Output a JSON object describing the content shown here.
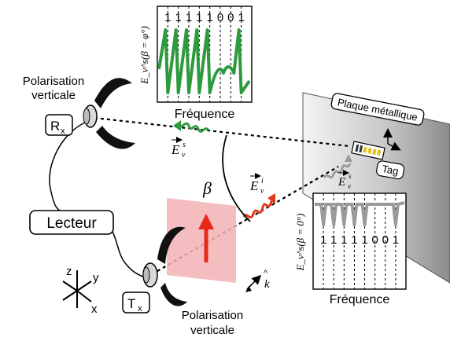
{
  "rx_polarisation": [
    "Polarisation",
    "verticale"
  ],
  "tx_polarisation": [
    "Polarisation",
    "verticale"
  ],
  "rx_box": {
    "main": "R",
    "sub": "x"
  },
  "tx_box": {
    "main": "T",
    "sub": "x"
  },
  "reader_label": "Lecteur",
  "plate_label": "Plaque métallique",
  "tag_label": "Tag",
  "beta_symbol": "β",
  "incident_field": {
    "main": "E",
    "sub": "v",
    "sup": "i"
  },
  "scattered_field": {
    "main": "E",
    "sub": "v",
    "sup": "s"
  },
  "k_symbol": "k",
  "axes_labels": {
    "z": "z",
    "y": "y",
    "x": "x"
  },
  "top_plot": {
    "code_digits": [
      "1",
      "1",
      "1",
      "1",
      "1",
      "0",
      "0",
      "1"
    ],
    "xlabel": "Fréquence",
    "ylabel": "E_v^s(β = φ°)",
    "line_color": "#2e9a3e"
  },
  "bottom_plot": {
    "code_digits": [
      "1",
      "1",
      "1",
      "1",
      "1",
      "0",
      "0",
      "1"
    ],
    "xlabel": "Fréquence",
    "ylabel": "E_v^s(β = 0°)",
    "line_color": "#9a9a9a"
  },
  "colors": {
    "incident_wave": "#e03a1e",
    "scattered_wave": "#2e9a3e",
    "polarisation_plane": "#f2b3b5",
    "polarisation_arrow": "#e8281b",
    "plate_light": "#f4f4f4",
    "plate_dark": "#8c8c8c"
  }
}
